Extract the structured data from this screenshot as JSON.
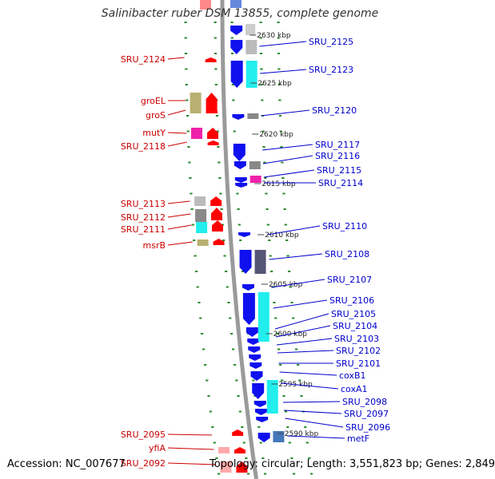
{
  "title": "Salinibacter ruber DSM 13855, complete genome",
  "accession": "Accession: NC_007677",
  "summary": "Topology: circular; Length: 3,551,823 bp; Genes: 2,849",
  "colors": {
    "forward_label": "#cc0000",
    "reverse_label": "#0000cc",
    "backbone": "#9a9a9a",
    "ring_dots": "#2a8a2a",
    "forward_gene": "#ff0000",
    "reverse_gene": "#1010ee",
    "cyan": "#22eeee",
    "gray": "#888888",
    "olive": "#b8b070",
    "magenta": "#ee22aa",
    "dark_slate": "#555577"
  },
  "ticks": [
    "2630 kbp",
    "2625 kbp",
    "2620 kbp",
    "2615 kbp",
    "2610 kbp",
    "2605 kbp",
    "2600 kbp",
    "2595 kbp",
    "2590 kbp"
  ],
  "forward_labels": [
    "SRU_2124",
    "groEL",
    "groS",
    "mutY",
    "SRU_2118",
    "SRU_2113",
    "SRU_2112",
    "SRU_2111",
    "msrB",
    "SRU_2095",
    "yfiA",
    "SRU_2092"
  ],
  "reverse_labels": [
    "SRU_2125",
    "SRU_2123",
    "SRU_2120",
    "SRU_2117",
    "SRU_2116",
    "SRU_2115",
    "SRU_2114",
    "SRU_2110",
    "SRU_2108",
    "SRU_2107",
    "SRU_2106",
    "SRU_2105",
    "SRU_2104",
    "SRU_2103",
    "SRU_2102",
    "SRU_2101",
    "coxB1",
    "coxA1",
    "SRU_2098",
    "SRU_2097",
    "SRU_2096",
    "metF"
  ]
}
